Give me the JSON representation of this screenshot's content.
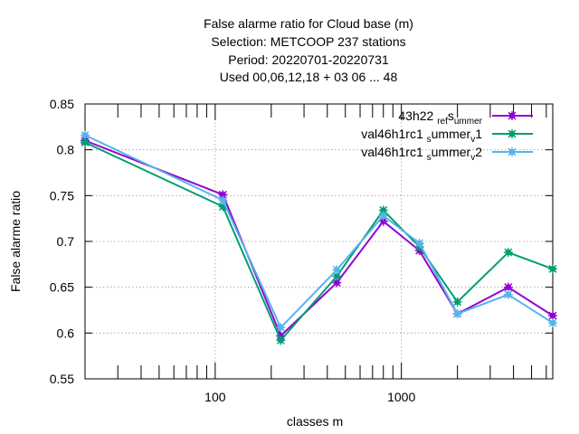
{
  "chart_data": {
    "type": "line",
    "title_lines": [
      "False alarme ratio  for Cloud base (m)",
      "Selection: METCOOP    237 stations",
      "Period: 20220701-20220731",
      "Used  00,06,12,18  + 03 06 ... 48"
    ],
    "xlabel": "classes m",
    "ylabel": "False alarme ratio",
    "x_scale": "log",
    "xlim": [
      20,
      6500
    ],
    "ylim": [
      0.55,
      0.85
    ],
    "x_ticks": [
      {
        "value": 100,
        "label": "100"
      },
      {
        "value": 1000,
        "label": "1000"
      }
    ],
    "y_ticks": [
      {
        "value": 0.55,
        "label": "0.55"
      },
      {
        "value": 0.6,
        "label": "0.6"
      },
      {
        "value": 0.65,
        "label": "0.65"
      },
      {
        "value": 0.7,
        "label": "0.7"
      },
      {
        "value": 0.75,
        "label": "0.75"
      },
      {
        "value": 0.8,
        "label": "0.8"
      },
      {
        "value": 0.85,
        "label": "0.85"
      }
    ],
    "grid": true,
    "legend_position": "top-right",
    "x": [
      20,
      110,
      225,
      450,
      800,
      1250,
      2000,
      3750,
      6500
    ],
    "series": [
      {
        "name": "43h22 ref summer",
        "legend_parts": [
          {
            "text": "43h22 ",
            "sub": false
          },
          {
            "text": "ref",
            "sub": true
          },
          {
            "text": "s",
            "sub": false
          },
          {
            "text": "ummer",
            "sub": true
          }
        ],
        "color": "#9400d3",
        "values": [
          0.81,
          0.751,
          0.597,
          0.655,
          0.722,
          0.69,
          0.621,
          0.65,
          0.619
        ]
      },
      {
        "name": "val46h1rc1 summer v1",
        "legend_parts": [
          {
            "text": "val46h1rc1 ",
            "sub": false
          },
          {
            "text": "s",
            "sub": true
          },
          {
            "text": "ummer",
            "sub": false
          },
          {
            "text": "v",
            "sub": true
          },
          {
            "text": "1",
            "sub": false
          }
        ],
        "color": "#009e73",
        "values": [
          0.808,
          0.738,
          0.592,
          0.662,
          0.734,
          0.694,
          0.634,
          0.688,
          0.67
        ]
      },
      {
        "name": "val46h1rc1 summer v2",
        "legend_parts": [
          {
            "text": "val46h1rc1 ",
            "sub": false
          },
          {
            "text": "s",
            "sub": true
          },
          {
            "text": "ummer",
            "sub": false
          },
          {
            "text": "v",
            "sub": true
          },
          {
            "text": "2",
            "sub": false
          }
        ],
        "color": "#56b4e9",
        "values": [
          0.816,
          0.745,
          0.606,
          0.669,
          0.728,
          0.698,
          0.621,
          0.642,
          0.611
        ]
      }
    ]
  }
}
